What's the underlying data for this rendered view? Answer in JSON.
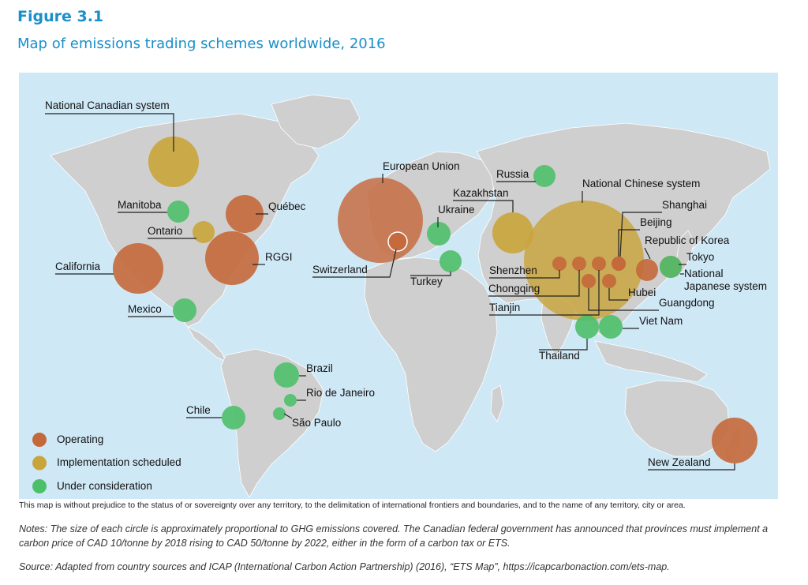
{
  "figure": {
    "label": "Figure 3.1",
    "title": "Map of emissions trading schemes worldwide, 2016"
  },
  "colors": {
    "operating": "#c4683a",
    "scheduled": "#c9a43a",
    "consideration": "#4cbf6a",
    "ocean": "#cfe8f6",
    "land": "#cfcfcf"
  },
  "legend": [
    {
      "label": "Operating",
      "status": "operating"
    },
    {
      "label": "Implementation scheduled",
      "status": "scheduled"
    },
    {
      "label": "Under consideration",
      "status": "consideration"
    }
  ],
  "schemes": [
    {
      "name": "National Canadian system",
      "status": "scheduled"
    },
    {
      "name": "Manitoba",
      "status": "consideration"
    },
    {
      "name": "Ontario",
      "status": "scheduled"
    },
    {
      "name": "Québec",
      "status": "operating"
    },
    {
      "name": "California",
      "status": "operating"
    },
    {
      "name": "RGGI",
      "status": "operating"
    },
    {
      "name": "Mexico",
      "status": "consideration"
    },
    {
      "name": "Brazil",
      "status": "consideration"
    },
    {
      "name": "Rio de Janeiro",
      "status": "consideration"
    },
    {
      "name": "São Paulo",
      "status": "consideration"
    },
    {
      "name": "Chile",
      "status": "consideration"
    },
    {
      "name": "European Union",
      "status": "operating"
    },
    {
      "name": "Switzerland",
      "status": "operating"
    },
    {
      "name": "Russia",
      "status": "consideration"
    },
    {
      "name": "Ukraine",
      "status": "consideration"
    },
    {
      "name": "Turkey",
      "status": "consideration"
    },
    {
      "name": "Kazakhstan",
      "status": "scheduled"
    },
    {
      "name": "National Chinese system",
      "status": "scheduled"
    },
    {
      "name": "Shanghai",
      "status": "operating"
    },
    {
      "name": "Beijing",
      "status": "operating"
    },
    {
      "name": "Republic of Korea",
      "status": "operating"
    },
    {
      "name": "Tokyo",
      "status": "operating"
    },
    {
      "name": "National Japanese system",
      "status": "consideration"
    },
    {
      "name": "Shenzhen",
      "status": "operating"
    },
    {
      "name": "Chongqing",
      "status": "operating"
    },
    {
      "name": "Tianjin",
      "status": "operating"
    },
    {
      "name": "Hubei",
      "status": "operating"
    },
    {
      "name": "Guangdong",
      "status": "operating"
    },
    {
      "name": "Thailand",
      "status": "consideration"
    },
    {
      "name": "Viet Nam",
      "status": "consideration"
    },
    {
      "name": "New Zealand",
      "status": "operating"
    }
  ],
  "labels": {
    "canada": "National Canadian system",
    "manitoba": "Manitoba",
    "ontario": "Ontario",
    "quebec": "Québec",
    "california": "California",
    "rggi": "RGGI",
    "mexico": "Mexico",
    "brazil": "Brazil",
    "rio": "Rio de Janeiro",
    "saopaulo": "São Paulo",
    "chile": "Chile",
    "eu": "European Union",
    "switzerland": "Switzerland",
    "russia": "Russia",
    "ukraine": "Ukraine",
    "turkey": "Turkey",
    "kazakhstan": "Kazakhstan",
    "china": "National Chinese system",
    "shanghai": "Shanghai",
    "beijing": "Beijing",
    "korea": "Republic of Korea",
    "tokyo": "Tokyo",
    "japan_line1": "National",
    "japan_line2": "Japanese system",
    "shenzhen": "Shenzhen",
    "chongqing": "Chongqing",
    "tianjin": "Tianjin",
    "hubei": "Hubei",
    "guangdong": "Guangdong",
    "thailand": "Thailand",
    "vietnam": "Viet Nam",
    "newzealand": "New Zealand"
  },
  "disclaimer": "This map is without prejudice to the status of or sovereignty over any territory, to the delimitation of international frontiers and boundaries, and to the name of any territory, city or area.",
  "notes": "Notes: The size of each circle is approximately proportional to GHG emissions covered. The Canadian federal government has announced that provinces must implement a carbon price of CAD 10/tonne by 2018 rising to CAD 50/tonne by 2022, either in the form of a carbon tax or ETS.",
  "source": "Source: Adapted from country sources and ICAP (International Carbon Action Partnership) (2016), “ETS Map”, https://icapcarbonaction.com/ets-map."
}
